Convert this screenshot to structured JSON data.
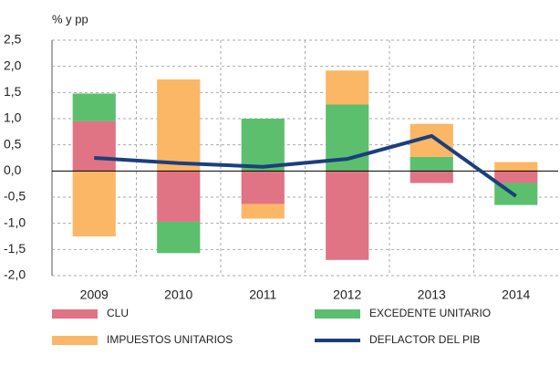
{
  "chart_data": {
    "type": "bar",
    "stacked": true,
    "ylabel": "% y pp",
    "categories": [
      "2009",
      "2010",
      "2011",
      "2012",
      "2013",
      "2014"
    ],
    "series": [
      {
        "name": "CLU",
        "type": "bar",
        "color": "#e07384",
        "values": [
          0.95,
          -0.97,
          -0.63,
          -1.7,
          -0.23,
          -0.23
        ]
      },
      {
        "name": "EXCEDENTE UNITARIO",
        "type": "bar",
        "color": "#5cbf6e",
        "values": [
          0.53,
          -0.6,
          1.0,
          1.27,
          0.27,
          -0.42
        ]
      },
      {
        "name": "IMPUESTOS UNITARIOS",
        "type": "bar",
        "color": "#fbb766",
        "values": [
          -1.25,
          1.75,
          -0.28,
          0.65,
          0.63,
          0.17
        ]
      },
      {
        "name": "DEFLACTOR DEL PIB",
        "type": "line",
        "color": "#1b3f7d",
        "values": [
          0.25,
          0.15,
          0.08,
          0.23,
          0.67,
          -0.48
        ]
      }
    ],
    "ylim": [
      -2.0,
      2.5
    ],
    "yticks": [
      {
        "value": -2.0,
        "label": "-2,0"
      },
      {
        "value": -1.5,
        "label": "-1,5"
      },
      {
        "value": -1.0,
        "label": "-1,0"
      },
      {
        "value": -0.5,
        "label": "-0,5"
      },
      {
        "value": 0,
        "label": "0,0"
      },
      {
        "value": 0.5,
        "label": "0,5"
      },
      {
        "value": 1.0,
        "label": "1,0"
      },
      {
        "value": 1.5,
        "label": "1,5"
      },
      {
        "value": 2.0,
        "label": "2,0"
      },
      {
        "value": 2.5,
        "label": "2,5"
      }
    ],
    "grid": true
  }
}
